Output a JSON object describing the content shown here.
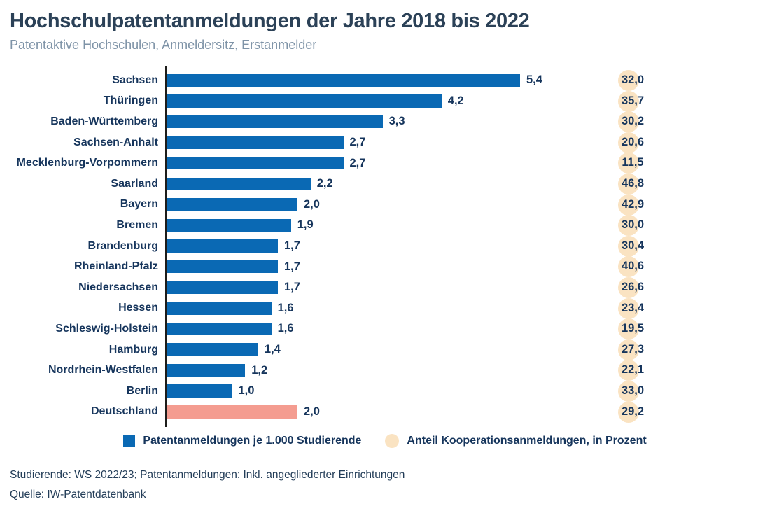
{
  "header": {
    "title": "Hochschulpatentanmeldungen der Jahre 2018 bis 2022",
    "subtitle": "Patentaktive Hochschulen, Anmeldersitz, Erstanmelder"
  },
  "colors": {
    "bar": "#0A69B4",
    "highlight_bar": "#F49C90",
    "circle": "#FAE3C2",
    "text": "#16355C",
    "title_text": "#2B4157",
    "subtitle_text": "#7E93A7",
    "axis_line": "#1d1d1b"
  },
  "legend": [
    {
      "label": "Patentanmeldungen je 1.000 Studierende",
      "swatch": "square",
      "color": "#0A69B4"
    },
    {
      "label": "Anteil Kooperationsanmeldungen, in Prozent",
      "swatch": "circle",
      "color": "#FAE3C2"
    }
  ],
  "footer": {
    "footnote": "Studierende: WS 2022/23; Patentanmeldungen: Inkl. angegliederter Einrichtungen",
    "source": "Quelle: IW-Patentdatenbank"
  },
  "chart_data": {
    "type": "bar",
    "orientation": "horizontal",
    "title": "Hochschulpatentanmeldungen der Jahre 2018 bis 2022",
    "subtitle": "Patentaktive Hochschulen, Anmeldersitz, Erstanmelder",
    "categories": [
      "Sachsen",
      "Thüringen",
      "Baden-Württemberg",
      "Sachsen-Anhalt",
      "Mecklenburg-Vorpommern",
      "Saarland",
      "Bayern",
      "Bremen",
      "Brandenburg",
      "Rheinland-Pfalz",
      "Niedersachsen",
      "Hessen",
      "Schleswig-Holstein",
      "Hamburg",
      "Nordrhein-Westfalen",
      "Berlin",
      "Deutschland"
    ],
    "series": [
      {
        "name": "Patentanmeldungen je 1.000 Studierende",
        "values": [
          5.4,
          4.2,
          3.3,
          2.7,
          2.7,
          2.2,
          2.0,
          1.9,
          1.7,
          1.7,
          1.7,
          1.6,
          1.6,
          1.4,
          1.2,
          1.0,
          2.0
        ],
        "labels": [
          "5,4",
          "4,2",
          "3,3",
          "2,7",
          "2,7",
          "2,2",
          "2,0",
          "1,9",
          "1,7",
          "1,7",
          "1,7",
          "1,6",
          "1,6",
          "1,4",
          "1,2",
          "1,0",
          "2,0"
        ]
      },
      {
        "name": "Anteil Kooperationsanmeldungen, in Prozent",
        "values": [
          32.0,
          35.7,
          30.2,
          20.6,
          11.5,
          46.8,
          42.9,
          30.0,
          30.4,
          40.6,
          26.6,
          23.4,
          19.5,
          27.3,
          22.1,
          33.0,
          29.2
        ],
        "labels": [
          "32,0",
          "35,7",
          "30,2",
          "20,6",
          "11,5",
          "46,8",
          "42,9",
          "30,0",
          "30,4",
          "40,6",
          "26,6",
          "23,4",
          "19,5",
          "27,3",
          "22,1",
          "33,0",
          "29,2"
        ]
      }
    ],
    "highlight_category": "Deutschland",
    "xlim": [
      0,
      5.4
    ],
    "grid": false,
    "legend_position": "bottom"
  }
}
